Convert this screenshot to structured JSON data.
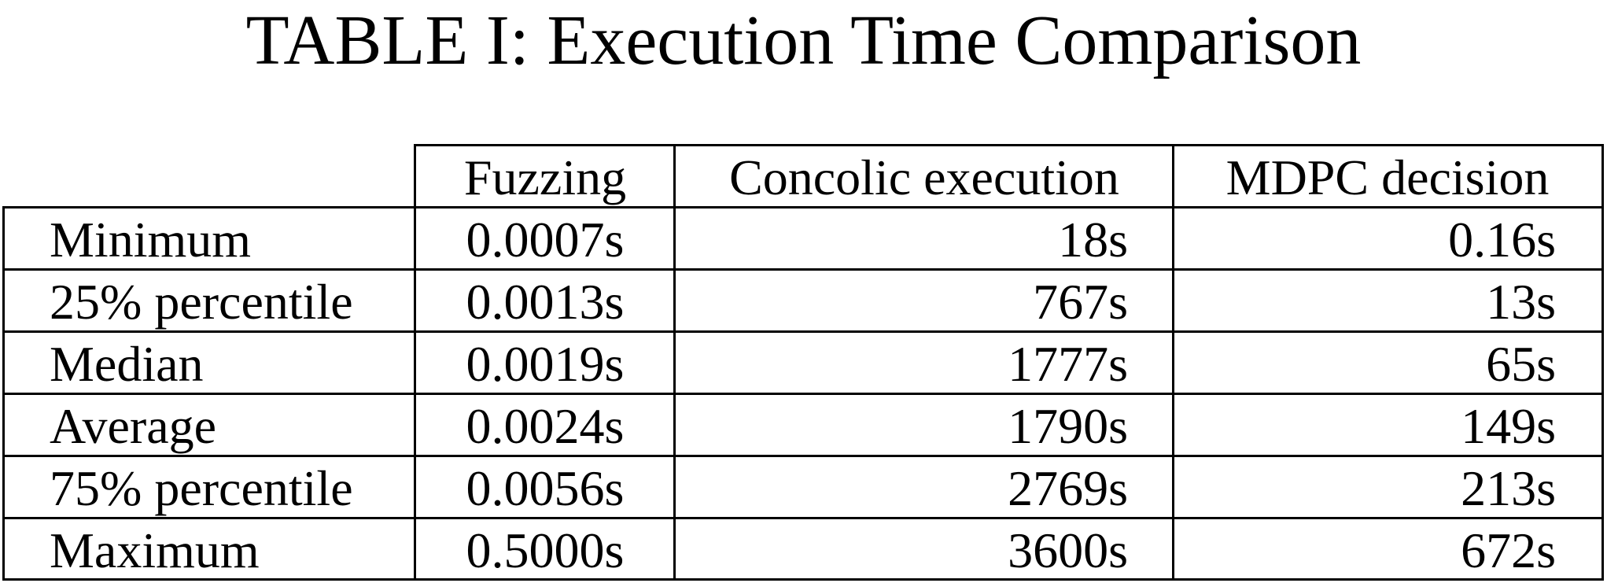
{
  "caption": "TABLE I: Execution Time Comparison",
  "table": {
    "headers": [
      "",
      "Fuzzing",
      "Concolic execution",
      "MDPC decision"
    ],
    "rows": [
      [
        "Minimum",
        "0.0007s",
        "18s",
        "0.16s"
      ],
      [
        "25% percentile",
        "0.0013s",
        "767s",
        "13s"
      ],
      [
        "Median",
        "0.0019s",
        "1777s",
        "65s"
      ],
      [
        "Average",
        "0.0024s",
        "1790s",
        "149s"
      ],
      [
        "75% percentile",
        "0.0056s",
        "2769s",
        "213s"
      ],
      [
        "Maximum",
        "0.5000s",
        "3600s",
        "672s"
      ]
    ]
  }
}
